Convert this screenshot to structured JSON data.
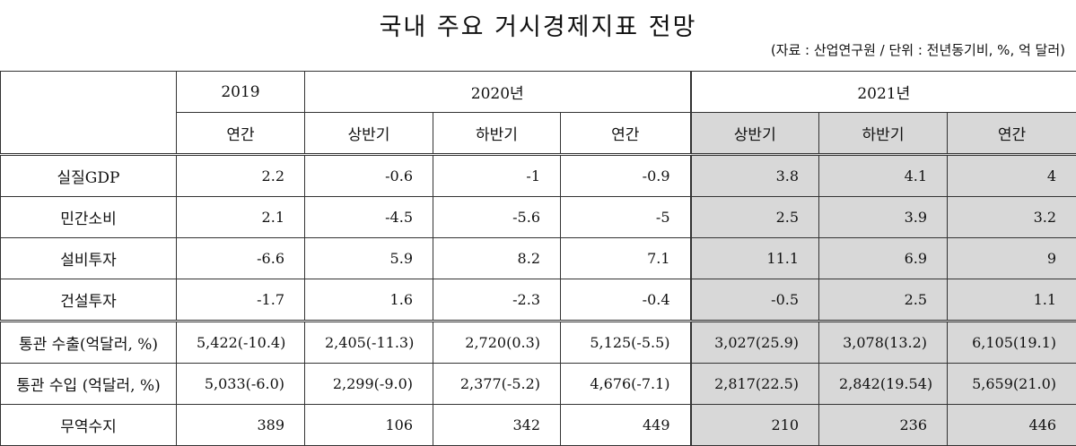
{
  "title": "국내 주요 거시경제지표 전망",
  "source": "(자료 : 산업연구원 / 단위 : 전년동기비, %, 억 달러)",
  "header": {
    "year_2019": "2019",
    "year_2020": "2020년",
    "year_2021": "2021년",
    "annual_2019": "연간",
    "h1_2020": "상반기",
    "h2_2020": "하반기",
    "annual_2020": "연간",
    "h1_2021": "상반기",
    "h2_2021": "하반기",
    "annual_2021": "연간"
  },
  "rows": [
    {
      "label": "실질GDP",
      "v": [
        "2.2",
        "-0.6",
        "-1",
        "-0.9",
        "3.8",
        "4.1",
        "4"
      ]
    },
    {
      "label": "민간소비",
      "v": [
        "2.1",
        "-4.5",
        "-5.6",
        "-5",
        "2.5",
        "3.9",
        "3.2"
      ]
    },
    {
      "label": "설비투자",
      "v": [
        "-6.6",
        "5.9",
        "8.2",
        "7.1",
        "11.1",
        "6.9",
        "9"
      ]
    },
    {
      "label": "건설투자",
      "v": [
        "-1.7",
        "1.6",
        "-2.3",
        "-0.4",
        "-0.5",
        "2.5",
        "1.1"
      ]
    },
    {
      "label": "통관 수출(억달러, %)",
      "v": [
        "5,422(-10.4)",
        "2,405(-11.3)",
        "2,720(0.3)",
        "5,125(-5.5)",
        "3,027(25.9)",
        "3,078(13.2)",
        "6,105(19.1)"
      ]
    },
    {
      "label": "통관 수입 (억달러, %)",
      "v": [
        "5,033(-6.0)",
        "2,299(-9.0)",
        "2,377(-5.2)",
        "4,676(-7.1)",
        "2,817(22.5)",
        "2,842(19.54)",
        "5,659(21.0)"
      ]
    },
    {
      "label": "무역수지",
      "v": [
        "389",
        "106",
        "342",
        "449",
        "210",
        "236",
        "446"
      ]
    }
  ]
}
